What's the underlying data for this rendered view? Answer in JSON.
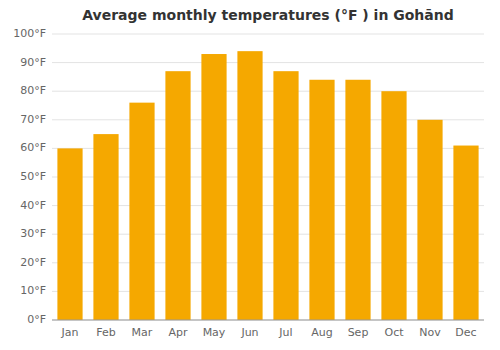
{
  "chart_data": {
    "type": "bar",
    "title": "Average monthly temperatures (°F ) in Gohānd",
    "categories": [
      "Jan",
      "Feb",
      "Mar",
      "Apr",
      "May",
      "Jun",
      "Jul",
      "Aug",
      "Sep",
      "Oct",
      "Nov",
      "Dec"
    ],
    "values": [
      60,
      65,
      76,
      87,
      93,
      94,
      87,
      84,
      84,
      80,
      70,
      61
    ],
    "color": "#F5A800",
    "ylim": [
      0,
      100
    ],
    "yticks": [
      {
        "value": 0,
        "label": "0°F"
      },
      {
        "value": 10,
        "label": "10°F"
      },
      {
        "value": 20,
        "label": "20°F"
      },
      {
        "value": 30,
        "label": "30°F"
      },
      {
        "value": 40,
        "label": "40°F"
      },
      {
        "value": 50,
        "label": "50°F"
      },
      {
        "value": 60,
        "label": "60°F"
      },
      {
        "value": 70,
        "label": "70°F"
      },
      {
        "value": 80,
        "label": "80°F"
      },
      {
        "value": 90,
        "label": "90°F"
      },
      {
        "value": 100,
        "label": "100°F"
      }
    ],
    "grid": true
  }
}
